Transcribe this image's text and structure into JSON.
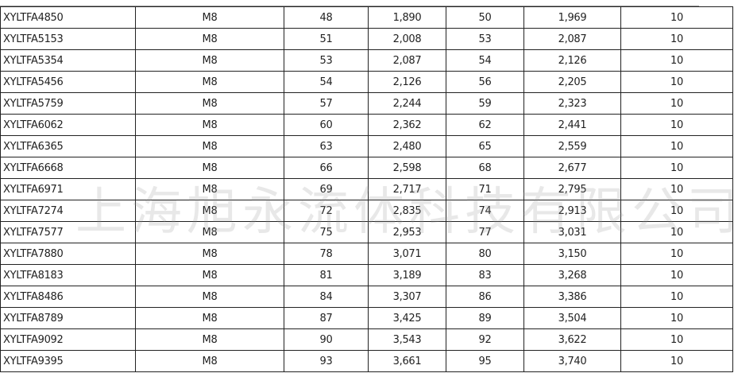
{
  "watermark": "上海旭永流体科技有限公司",
  "rows": [
    [
      "XYLTFA4850",
      "M8",
      "48",
      "1,890",
      "50",
      "1,969",
      "10"
    ],
    [
      "XYLTFA5153",
      "M8",
      "51",
      "2,008",
      "53",
      "2,087",
      "10"
    ],
    [
      "XYLTFA5354",
      "M8",
      "53",
      "2,087",
      "54",
      "2,126",
      "10"
    ],
    [
      "XYLTFA5456",
      "M8",
      "54",
      "2,126",
      "56",
      "2,205",
      "10"
    ],
    [
      "XYLTFA5759",
      "M8",
      "57",
      "2,244",
      "59",
      "2,323",
      "10"
    ],
    [
      "XYLTFA6062",
      "M8",
      "60",
      "2,362",
      "62",
      "2,441",
      "10"
    ],
    [
      "XYLTFA6365",
      "M8",
      "63",
      "2,480",
      "65",
      "2,559",
      "10"
    ],
    [
      "XYLTFA6668",
      "M8",
      "66",
      "2,598",
      "68",
      "2,677",
      "10"
    ],
    [
      "XYLTFA6971",
      "M8",
      "69",
      "2,717",
      "71",
      "2,795",
      "10"
    ],
    [
      "XYLTFA7274",
      "M8",
      "72",
      "2,835",
      "74",
      "2,913",
      "10"
    ],
    [
      "XYLTFA7577",
      "M8",
      "75",
      "2,953",
      "77",
      "3,031",
      "10"
    ],
    [
      "XYLTFA7880",
      "M8",
      "78",
      "3,071",
      "80",
      "3,150",
      "10"
    ],
    [
      "XYLTFA8183",
      "M8",
      "81",
      "3,189",
      "83",
      "3,268",
      "10"
    ],
    [
      "XYLTFA8486",
      "M8",
      "84",
      "3,307",
      "86",
      "3,386",
      "10"
    ],
    [
      "XYLTFA8789",
      "M8",
      "87",
      "3,425",
      "89",
      "3,504",
      "10"
    ],
    [
      "XYLTFA9092",
      "M8",
      "90",
      "3,543",
      "92",
      "3,622",
      "10"
    ],
    [
      "XYLTFA9395",
      "M8",
      "93",
      "3,661",
      "95",
      "3,740",
      "10"
    ]
  ]
}
